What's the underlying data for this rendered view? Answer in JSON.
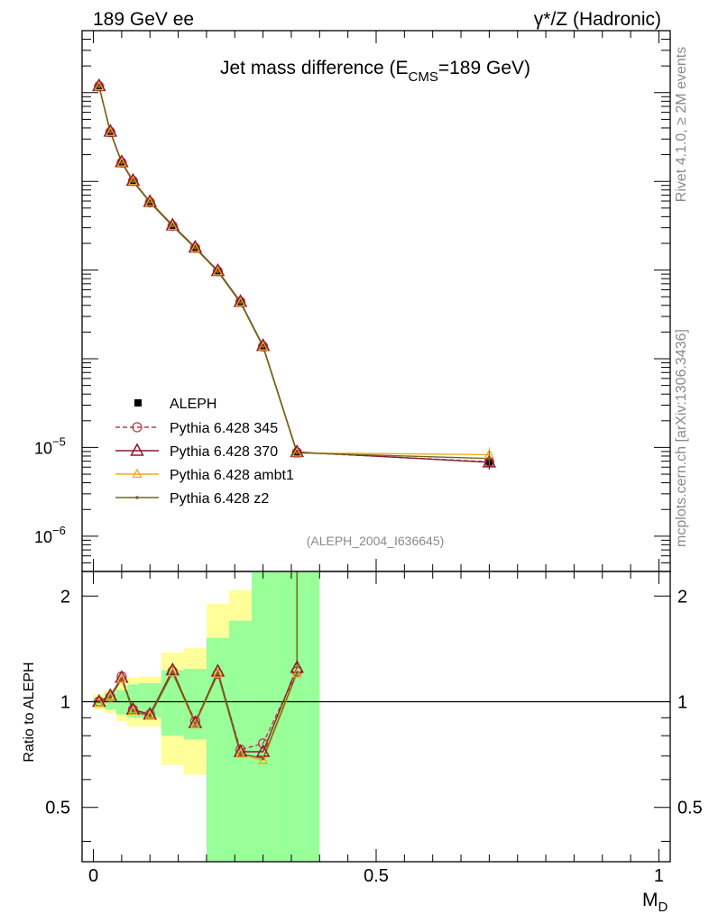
{
  "header": {
    "left": "189 GeV ee",
    "right": "γ*/Z (Hadronic)"
  },
  "side_labels": {
    "rivet": "Rivet 4.1.0, ≥ 2M events",
    "mcplots": "mcplots.cern.ch [arXiv:1306.3436]"
  },
  "chart_data": [
    {
      "panel": "main",
      "type": "line",
      "title_prefix": "Jet mass difference (E",
      "title_sub": "CMS",
      "title_suffix": "=189 GeV)",
      "analysis_tag": "(ALEPH_2004_I636645)",
      "yscale": "log",
      "ylim": [
        4e-07,
        0.5
      ],
      "xlim": [
        -0.02,
        1.02
      ],
      "ytick_labels": [
        {
          "base": "10",
          "exp": "−5",
          "value": 1e-05
        },
        {
          "base": "10",
          "exp": "−6",
          "value": 1e-06
        }
      ],
      "legend_position": "lower-left",
      "x": [
        0.01,
        0.03,
        0.05,
        0.07,
        0.1,
        0.14,
        0.18,
        0.22,
        0.26,
        0.3,
        0.36,
        0.7
      ],
      "series": [
        {
          "name": "ALEPH",
          "marker": "square",
          "color": "#000000",
          "values": [
            0.115,
            0.035,
            0.016,
            0.0099,
            0.0057,
            0.0031,
            0.00175,
            0.00095,
            0.00043,
            0.000135,
            8.5e-06,
            6.8e-06
          ]
        },
        {
          "name": "Pythia 6.428 345",
          "marker": "circle",
          "color": "#c0394d",
          "dash": "5,3",
          "values": [
            0.118,
            0.036,
            0.0163,
            0.0101,
            0.0058,
            0.00315,
            0.00178,
            0.00097,
            0.00044,
            0.000138,
            8.8e-06,
            6.9e-06
          ]
        },
        {
          "name": "Pythia 6.428 370",
          "marker": "triangle",
          "color": "#8b1a2e",
          "values": [
            0.119,
            0.0365,
            0.0165,
            0.0102,
            0.0059,
            0.0032,
            0.0018,
            0.00098,
            0.00044,
            0.00014,
            8.9e-06,
            6.8e-06
          ]
        },
        {
          "name": "Pythia 6.428 ambt1",
          "marker": "triangle-small",
          "color": "#f5a623",
          "values": [
            0.117,
            0.0358,
            0.0162,
            0.01,
            0.0058,
            0.00312,
            0.00176,
            0.00096,
            0.00043,
            0.000137,
            8.7e-06,
            8.3e-06
          ]
        },
        {
          "name": "Pythia 6.428 z2",
          "marker": "dot",
          "color": "#6b6b1a",
          "values": [
            0.117,
            0.0359,
            0.0162,
            0.01,
            0.0058,
            0.00313,
            0.00177,
            0.00096,
            0.00043,
            0.000137,
            8.7e-06,
            7.5e-06
          ]
        }
      ]
    },
    {
      "panel": "ratio",
      "type": "line",
      "ylabel": "Ratio to ALEPH",
      "xlabel": "M_D",
      "xlabel_main": "M",
      "xlabel_sub": "D",
      "ylim": [
        0.35,
        2.35
      ],
      "xlim": [
        -0.02,
        1.02
      ],
      "y_ticks": [
        "0.5",
        "1",
        "2"
      ],
      "y_tick_values": [
        0.5,
        1,
        2
      ],
      "x_ticks": [
        "0",
        "0.5",
        "1"
      ],
      "x_tick_values": [
        0,
        0.5,
        1
      ],
      "reference": 1,
      "bins": [
        {
          "lo": 0.0,
          "hi": 0.02,
          "stat": [
            0.97,
            1.03
          ],
          "tot": [
            0.95,
            1.05
          ]
        },
        {
          "lo": 0.02,
          "hi": 0.04,
          "stat": [
            0.95,
            1.06
          ],
          "tot": [
            0.93,
            1.08
          ]
        },
        {
          "lo": 0.04,
          "hi": 0.06,
          "stat": [
            0.92,
            1.08
          ],
          "tot": [
            0.88,
            1.12
          ]
        },
        {
          "lo": 0.06,
          "hi": 0.08,
          "stat": [
            0.9,
            1.12
          ],
          "tot": [
            0.85,
            1.17
          ]
        },
        {
          "lo": 0.08,
          "hi": 0.12,
          "stat": [
            0.9,
            1.13
          ],
          "tot": [
            0.85,
            1.18
          ]
        },
        {
          "lo": 0.12,
          "hi": 0.16,
          "stat": [
            0.8,
            1.23
          ],
          "tot": [
            0.66,
            1.38
          ]
        },
        {
          "lo": 0.16,
          "hi": 0.2,
          "stat": [
            0.78,
            1.24
          ],
          "tot": [
            0.62,
            1.42
          ]
        },
        {
          "lo": 0.2,
          "hi": 0.24,
          "stat": [
            0.3,
            1.52
          ],
          "tot": [
            0.3,
            1.9
          ]
        },
        {
          "lo": 0.24,
          "hi": 0.28,
          "stat": [
            0.3,
            1.7
          ],
          "tot": [
            0.3,
            2.08
          ]
        },
        {
          "lo": 0.28,
          "hi": 0.32,
          "stat": [
            0.3,
            2.35
          ],
          "tot": [
            0.3,
            2.35
          ]
        },
        {
          "lo": 0.32,
          "hi": 0.4,
          "stat": [
            0.3,
            2.35
          ],
          "tot": [
            0.3,
            2.35
          ]
        }
      ],
      "x": [
        0.01,
        0.03,
        0.05,
        0.07,
        0.1,
        0.14,
        0.18,
        0.22,
        0.26,
        0.3,
        0.36
      ],
      "series": [
        {
          "name": "Pythia 6.428 345",
          "color": "#c0394d",
          "dash": "5,3",
          "values": [
            1.0,
            1.03,
            1.18,
            0.95,
            0.92,
            1.22,
            0.88,
            1.2,
            0.73,
            0.76,
            1.22
          ]
        },
        {
          "name": "Pythia 6.428 370",
          "color": "#8b1a2e",
          "values": [
            1.0,
            1.04,
            1.17,
            0.95,
            0.92,
            1.23,
            0.87,
            1.22,
            0.72,
            0.72,
            1.25
          ]
        },
        {
          "name": "Pythia 6.428 ambt1",
          "color": "#f5a623",
          "values": [
            0.99,
            1.03,
            1.16,
            0.94,
            0.91,
            1.21,
            0.86,
            1.2,
            0.71,
            0.68,
            1.2
          ]
        },
        {
          "name": "Pythia 6.428 z2",
          "color": "#6b6b1a",
          "values": [
            1.0,
            1.03,
            1.16,
            0.94,
            0.91,
            1.21,
            0.87,
            1.2,
            0.71,
            0.69,
            1.21
          ]
        }
      ]
    }
  ]
}
